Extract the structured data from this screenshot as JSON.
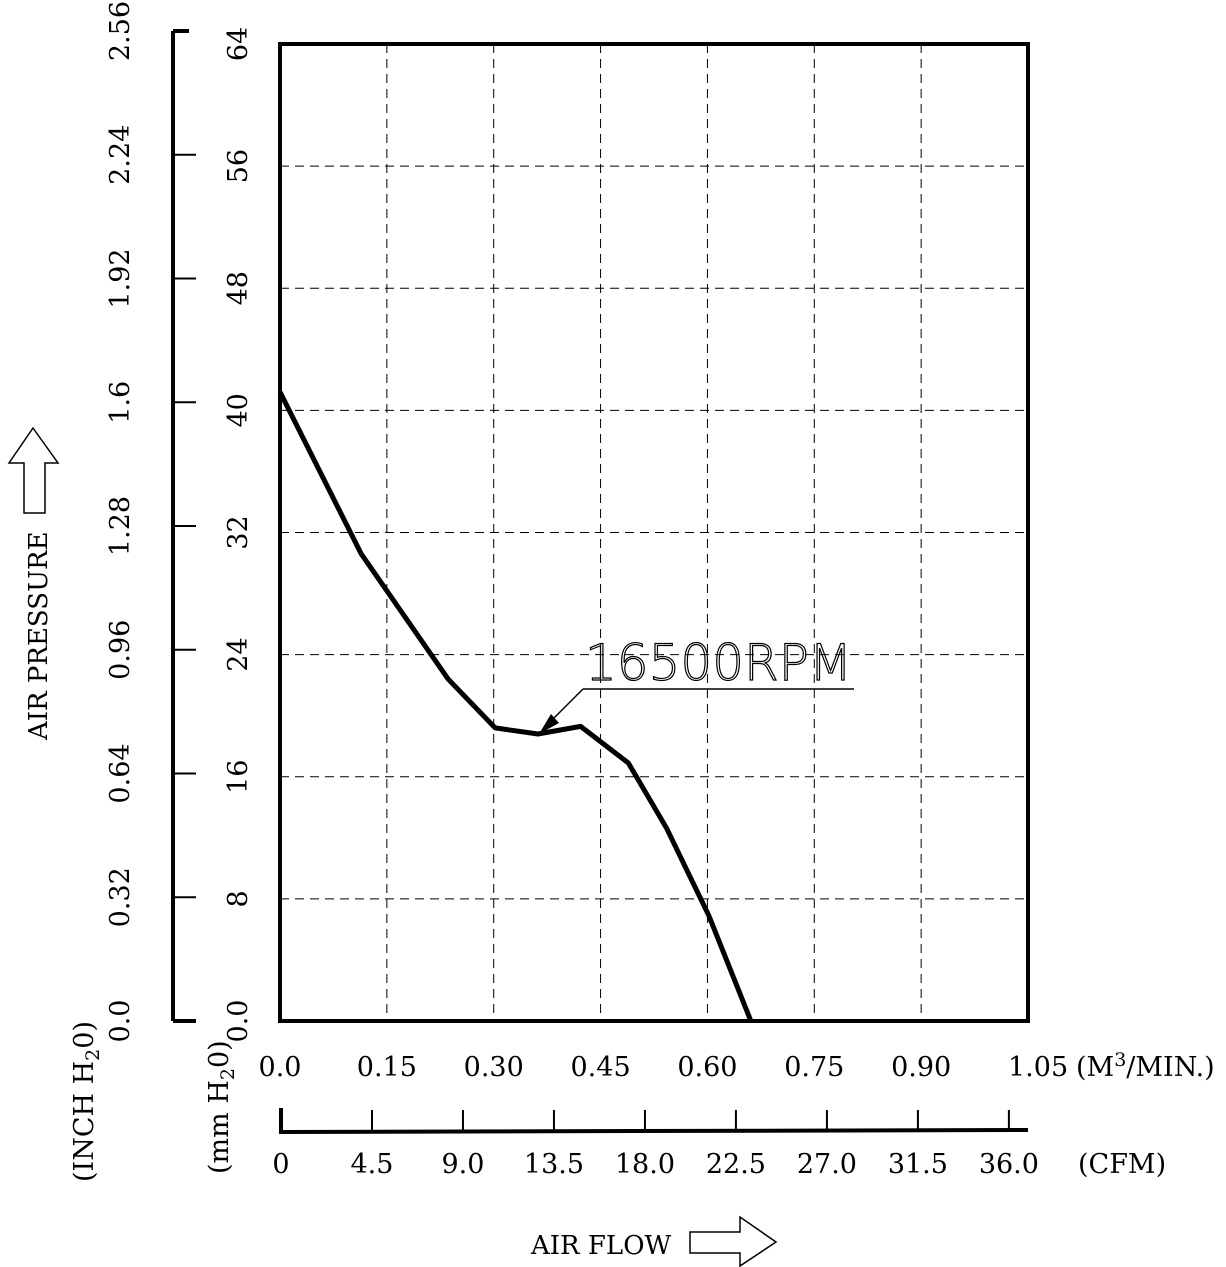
{
  "chart_data": {
    "type": "line",
    "y_axis_title": "AIR PRESSURE",
    "x_axis_title": "AIR FLOW",
    "y_left_outer": {
      "unit": "(INCH H",
      "unit_sub": "2",
      "unit_end": "0)",
      "ticks": [
        "0.0",
        "0.32",
        "0.64",
        "0.96",
        "1.28",
        "1.6",
        "1.92",
        "2.24",
        "2.56"
      ]
    },
    "y_left_inner": {
      "unit": "(mm H",
      "unit_sub": "2",
      "unit_end": "0)",
      "ticks": [
        "0.0",
        "8",
        "16",
        "24",
        "32",
        "40",
        "48",
        "56",
        "64"
      ],
      "ylim": [
        0,
        64
      ]
    },
    "x_m3": {
      "unit": "(M",
      "unit_sup": "3",
      "unit_end": "/MIN.)",
      "ticks": [
        "0.0",
        "0.15",
        "0.30",
        "0.45",
        "0.60",
        "0.75",
        "0.90",
        "1.05"
      ],
      "xlim": [
        0,
        1.05
      ]
    },
    "x_cfm": {
      "unit": "(CFM)",
      "ticks": [
        "0",
        "4.5",
        "9.0",
        "13.5",
        "18.0",
        "22.5",
        "27.0",
        "31.5",
        "36.0"
      ]
    },
    "grid": true,
    "series": [
      {
        "name": "16500RPM",
        "x": [
          0.0,
          0.114,
          0.236,
          0.302,
          0.362,
          0.422,
          0.489,
          0.543,
          0.602,
          0.661
        ],
        "y": [
          41.2,
          30.6,
          22.4,
          19.2,
          18.8,
          19.3,
          16.9,
          12.6,
          6.9,
          0.0
        ]
      }
    ]
  }
}
